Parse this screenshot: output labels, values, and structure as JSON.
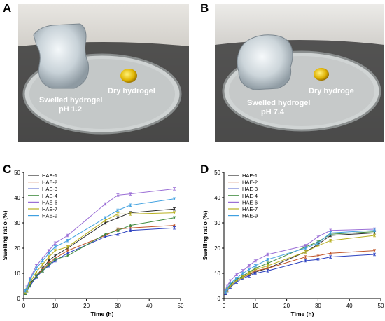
{
  "panels": {
    "A": {
      "letter": "A",
      "label_swelled_line1": "Swelled hydrogel",
      "label_swelled_line2": "pH 1.2",
      "label_dry": "Dry hydrogel"
    },
    "B": {
      "letter": "B",
      "label_swelled_line1": "Swelled hydrogel",
      "label_swelled_line2": "pH 7.4",
      "label_dry": "Dry hydroge"
    },
    "C": {
      "letter": "C"
    },
    "D": {
      "letter": "D"
    }
  },
  "colors": {
    "HAE-1": "#2b2b2b",
    "HAE-2": "#c0562a",
    "HAE-3": "#2a3fbf",
    "HAE-4": "#3f8a3f",
    "HAE-6": "#9b6fd6",
    "HAE-7": "#b8b020",
    "HAE-9": "#3fa0e0"
  },
  "chart_data": [
    {
      "type": "line",
      "panel": "C",
      "xlabel": "Time (h)",
      "ylabel": "Swelling ratio (%)",
      "xlim": [
        0,
        50
      ],
      "ylim": [
        0,
        50
      ],
      "xticks": [
        0,
        10,
        20,
        30,
        40,
        50
      ],
      "yticks": [
        0,
        10,
        20,
        30,
        40,
        50
      ],
      "legend_position": "top-left",
      "x": [
        0.5,
        1,
        2,
        4,
        6,
        8,
        10,
        14,
        26,
        30,
        34,
        48
      ],
      "series": [
        {
          "name": "HAE-1",
          "values": [
            2,
            3,
            6,
            9,
            12,
            15,
            17,
            20,
            30,
            32,
            34,
            35.5
          ]
        },
        {
          "name": "HAE-2",
          "values": [
            2,
            3,
            5.5,
            9,
            11.5,
            14,
            16,
            19,
            25,
            27.5,
            28,
            29
          ]
        },
        {
          "name": "HAE-3",
          "values": [
            2,
            3,
            5,
            8.5,
            11,
            13,
            15,
            18,
            24.5,
            25.5,
            27,
            28
          ]
        },
        {
          "name": "HAE-4",
          "values": [
            2,
            3,
            5.5,
            9,
            11,
            13.5,
            15.5,
            17,
            25.5,
            27,
            29,
            32
          ]
        },
        {
          "name": "HAE-6",
          "values": [
            3,
            4.5,
            8,
            13,
            16,
            19,
            22,
            25,
            37.5,
            41,
            41.5,
            43.5
          ]
        },
        {
          "name": "HAE-7",
          "values": [
            2.5,
            3.5,
            6.5,
            10.5,
            13.5,
            16.5,
            19,
            20.5,
            31,
            33.5,
            33.5,
            34
          ]
        },
        {
          "name": "HAE-9",
          "values": [
            3,
            4,
            7.5,
            12,
            15,
            18,
            20.5,
            23,
            32,
            35,
            37,
            39.5
          ]
        }
      ]
    },
    {
      "type": "line",
      "panel": "D",
      "xlabel": "Time (h)",
      "ylabel": "Swelling ratio (%)",
      "xlim": [
        0,
        50
      ],
      "ylim": [
        0,
        50
      ],
      "xticks": [
        0,
        10,
        20,
        30,
        40,
        50
      ],
      "yticks": [
        0,
        10,
        20,
        30,
        40,
        50
      ],
      "legend_position": "top-left",
      "x": [
        0.5,
        1,
        2,
        4,
        6,
        8,
        10,
        14,
        26,
        30,
        34,
        48
      ],
      "series": [
        {
          "name": "HAE-1",
          "values": [
            2,
            3.5,
            5,
            7,
            8.5,
            9.5,
            10.5,
            12,
            18.5,
            21.5,
            25,
            26
          ]
        },
        {
          "name": "HAE-2",
          "values": [
            2,
            3.5,
            5,
            7,
            8.5,
            9.5,
            11,
            12,
            16.5,
            17,
            18,
            19
          ]
        },
        {
          "name": "HAE-3",
          "values": [
            2,
            3,
            4.5,
            6.5,
            8,
            9,
            10,
            11,
            15,
            15.5,
            16.5,
            17.5
          ]
        },
        {
          "name": "HAE-4",
          "values": [
            2.5,
            4,
            5.5,
            7.5,
            9,
            10.5,
            12,
            14,
            20.5,
            22.5,
            25.5,
            26.5
          ]
        },
        {
          "name": "HAE-6",
          "values": [
            3,
            5,
            7,
            9.5,
            11,
            13,
            15,
            17.5,
            21,
            24.5,
            27,
            27.5
          ]
        },
        {
          "name": "HAE-7",
          "values": [
            2.5,
            3.5,
            5,
            7,
            8.5,
            10,
            11.5,
            13,
            18.5,
            21,
            23,
            25
          ]
        },
        {
          "name": "HAE-9",
          "values": [
            2.5,
            4,
            6,
            8,
            10,
            11.5,
            13,
            15.5,
            20,
            22,
            26,
            27
          ]
        }
      ]
    }
  ]
}
